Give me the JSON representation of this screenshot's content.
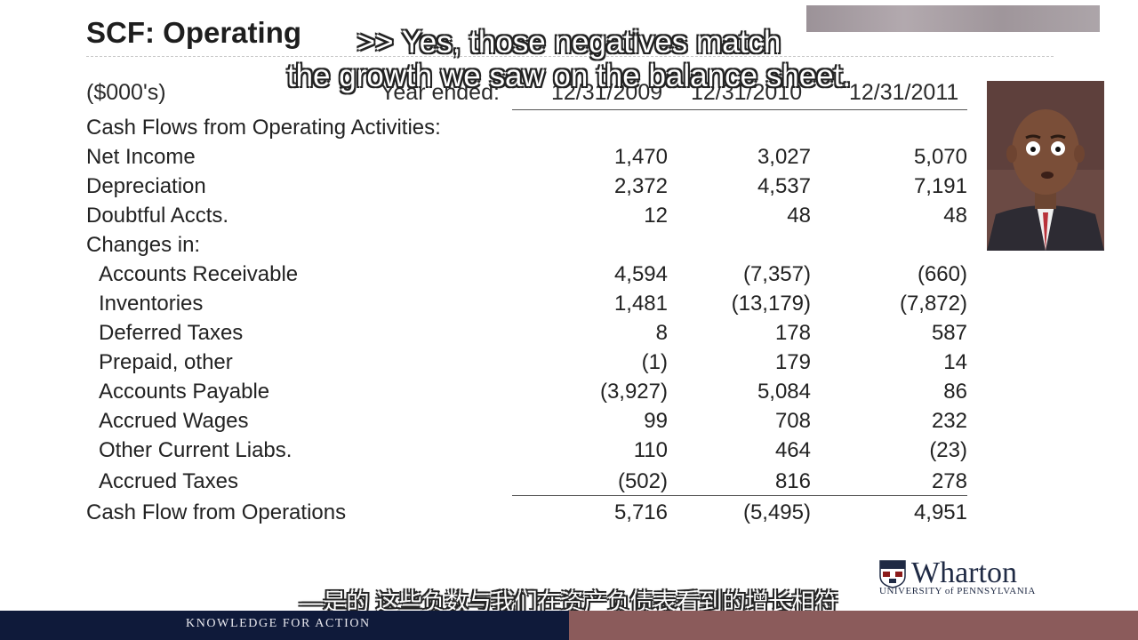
{
  "slide": {
    "title": "SCF: Operating",
    "units_label": "($000's)",
    "year_label": "Year ended:",
    "columns": [
      "12/31/2009",
      "12/31/2010",
      "12/31/2011"
    ],
    "section_label": "Cash Flows from Operating Activities:",
    "rows": [
      {
        "label": "Net Income",
        "values": [
          "1,470",
          "3,027",
          "5,070"
        ]
      },
      {
        "label": "Depreciation",
        "values": [
          "2,372",
          "4,537",
          "7,191"
        ]
      },
      {
        "label": "Doubtful Accts.",
        "values": [
          "12",
          "48",
          "48"
        ]
      },
      {
        "label": "Changes in:",
        "values": [
          "",
          "",
          ""
        ]
      },
      {
        "label": "Accounts Receivable",
        "values": [
          "4,594",
          "(7,357)",
          "(660)"
        ]
      },
      {
        "label": "Inventories",
        "values": [
          "1,481",
          "(13,179)",
          "(7,872)"
        ]
      },
      {
        "label": "Deferred Taxes",
        "values": [
          "8",
          "178",
          "587"
        ]
      },
      {
        "label": "Prepaid, other",
        "values": [
          "(1)",
          "179",
          "14"
        ]
      },
      {
        "label": "Accounts Payable",
        "values": [
          "(3,927)",
          "5,084",
          "86"
        ]
      },
      {
        "label": "Accrued Wages",
        "values": [
          "99",
          "708",
          "232"
        ]
      },
      {
        "label": "Other Current Liabs.",
        "values": [
          "110",
          "464",
          "(23)"
        ]
      },
      {
        "label": "Accrued Taxes",
        "values": [
          "(502)",
          "816",
          "278"
        ]
      }
    ],
    "total": {
      "label": "Cash Flow from Operations",
      "values": [
        "5,716",
        "(5,495)",
        "4,951"
      ]
    }
  },
  "captions": {
    "en_line1": ">> Yes, those negatives match",
    "en_line2": "the growth we saw on the balance sheet.",
    "zh": "—是的 这些负数与我们在资产负债表看到的增长相符"
  },
  "branding": {
    "logo_word": "Wharton",
    "logo_sub": "UNIVERSITY of PENNSYLVANIA",
    "tagline": "KNOWLEDGE FOR ACTION"
  },
  "colors": {
    "footer_left": "#0f1a3a",
    "footer_right": "#8b5b5b",
    "logo": "#1f2a44"
  }
}
